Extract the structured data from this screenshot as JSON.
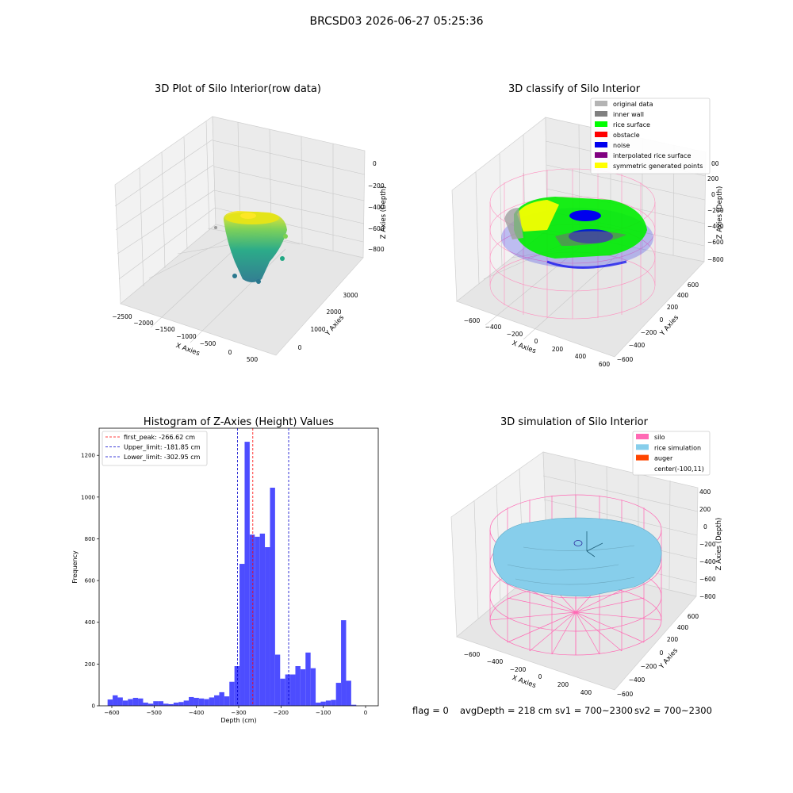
{
  "suptitle": "BRCSD03 2026-06-27 05:25:36",
  "footer": {
    "flag": "flag = 0",
    "avg_depth": "avgDepth = 218 cm",
    "sv1": "sv1 = 700~2300",
    "sv2": "sv2 = 700~2300"
  },
  "chart_data": [
    {
      "type": "scatter",
      "projection": "3d",
      "title": "3D Plot of Silo Interior(row data)",
      "xlabel": "X Axies",
      "ylabel": "Y Axies",
      "zlabel": "Z Axies (Depth)",
      "x_ticks": [
        "−2500",
        "−2000",
        "−1500",
        "−1000",
        "−500",
        "0",
        "500"
      ],
      "y_ticks": [
        "0",
        "1000",
        "2000",
        "3000"
      ],
      "z_ticks": [
        "0",
        "−200",
        "−400",
        "−600",
        "−800"
      ],
      "colormap": "viridis"
    },
    {
      "type": "scatter",
      "projection": "3d",
      "title": "3D classify of Silo Interior",
      "xlabel": "X Axies",
      "ylabel": "Y Axies",
      "zlabel": "Z Axies (Depth)",
      "x_ticks": [
        "−600",
        "−400",
        "−200",
        "0",
        "200",
        "400",
        "600"
      ],
      "y_ticks": [
        "−600",
        "−400",
        "−200",
        "0",
        "200",
        "400",
        "600"
      ],
      "z_ticks": [
        "200",
        "0",
        "−200",
        "−400",
        "−600",
        "−800"
      ],
      "z_ticks_partial": [
        "00"
      ],
      "legend": [
        {
          "label": "original data",
          "color": "#b4b4b4"
        },
        {
          "label": "inner wall",
          "color": "#808080"
        },
        {
          "label": "rice surface",
          "color": "#00ff00"
        },
        {
          "label": "obstacle",
          "color": "#ff0000"
        },
        {
          "label": "noise",
          "color": "#0000ee"
        },
        {
          "label": "interpolated rice surface",
          "color": "#800080"
        },
        {
          "label": "symmetric generated points",
          "color": "#ffff00"
        }
      ]
    },
    {
      "type": "bar",
      "title": "Histogram of Z-Axies (Height) Values",
      "xlabel": "Depth (cm)",
      "ylabel": "Frequency",
      "xlim": [
        -630,
        30
      ],
      "ylim": [
        0,
        1330
      ],
      "x_ticks": [
        -600,
        -500,
        -400,
        -300,
        -200,
        -100,
        0
      ],
      "x_tick_labels": [
        "−600",
        "−500",
        "−400",
        "−300",
        "−200",
        "−100",
        "0"
      ],
      "y_ticks": [
        0,
        200,
        400,
        600,
        800,
        1000,
        1200
      ],
      "y_tick_labels": [
        "0",
        "200",
        "400",
        "600",
        "800",
        "1000",
        "1200"
      ],
      "bar_color": "#4d4dff",
      "bins": [
        {
          "start": -610,
          "end": -598,
          "count": 30
        },
        {
          "start": -598,
          "end": -586,
          "count": 50
        },
        {
          "start": -586,
          "end": -574,
          "count": 40
        },
        {
          "start": -574,
          "end": -562,
          "count": 25
        },
        {
          "start": -562,
          "end": -550,
          "count": 32
        },
        {
          "start": -550,
          "end": -538,
          "count": 38
        },
        {
          "start": -538,
          "end": -526,
          "count": 35
        },
        {
          "start": -526,
          "end": -514,
          "count": 15
        },
        {
          "start": -514,
          "end": -502,
          "count": 10
        },
        {
          "start": -502,
          "end": -490,
          "count": 22
        },
        {
          "start": -490,
          "end": -478,
          "count": 22
        },
        {
          "start": -478,
          "end": -466,
          "count": 10
        },
        {
          "start": -466,
          "end": -454,
          "count": 8
        },
        {
          "start": -454,
          "end": -442,
          "count": 15
        },
        {
          "start": -442,
          "end": -430,
          "count": 18
        },
        {
          "start": -430,
          "end": -418,
          "count": 25
        },
        {
          "start": -418,
          "end": -406,
          "count": 42
        },
        {
          "start": -406,
          "end": -394,
          "count": 38
        },
        {
          "start": -394,
          "end": -382,
          "count": 35
        },
        {
          "start": -382,
          "end": -370,
          "count": 32
        },
        {
          "start": -370,
          "end": -358,
          "count": 40
        },
        {
          "start": -358,
          "end": -346,
          "count": 50
        },
        {
          "start": -346,
          "end": -334,
          "count": 65
        },
        {
          "start": -334,
          "end": -322,
          "count": 45
        },
        {
          "start": -322,
          "end": -310,
          "count": 115
        },
        {
          "start": -310,
          "end": -298,
          "count": 190
        },
        {
          "start": -298,
          "end": -286,
          "count": 680
        },
        {
          "start": -286,
          "end": -274,
          "count": 1265
        },
        {
          "start": -274,
          "end": -262,
          "count": 820
        },
        {
          "start": -262,
          "end": -250,
          "count": 810
        },
        {
          "start": -250,
          "end": -238,
          "count": 825
        },
        {
          "start": -238,
          "end": -226,
          "count": 760
        },
        {
          "start": -226,
          "end": -214,
          "count": 1045
        },
        {
          "start": -214,
          "end": -202,
          "count": 245
        },
        {
          "start": -202,
          "end": -190,
          "count": 130
        },
        {
          "start": -190,
          "end": -178,
          "count": 150
        },
        {
          "start": -178,
          "end": -166,
          "count": 150
        },
        {
          "start": -166,
          "end": -154,
          "count": 190
        },
        {
          "start": -154,
          "end": -142,
          "count": 175
        },
        {
          "start": -142,
          "end": -130,
          "count": 255
        },
        {
          "start": -130,
          "end": -118,
          "count": 180
        },
        {
          "start": -118,
          "end": -106,
          "count": 15
        },
        {
          "start": -106,
          "end": -94,
          "count": 20
        },
        {
          "start": -94,
          "end": -82,
          "count": 25
        },
        {
          "start": -82,
          "end": -70,
          "count": 28
        },
        {
          "start": -70,
          "end": -58,
          "count": 110
        },
        {
          "start": -58,
          "end": -46,
          "count": 410
        },
        {
          "start": -46,
          "end": -34,
          "count": 120
        },
        {
          "start": -34,
          "end": -22,
          "count": 5
        }
      ],
      "reference_lines": [
        {
          "label": "first_peak: -266.62 cm",
          "value": -266.62,
          "color": "#ff0000"
        },
        {
          "label": "Upper_limit: -181.85 cm",
          "value": -181.85,
          "color": "#0000cc"
        },
        {
          "label": "Lower_limit: -302.95 cm",
          "value": -302.95,
          "color": "#0000cc"
        }
      ],
      "legend_position": "upper-left"
    },
    {
      "type": "surface",
      "projection": "3d",
      "title": "3D simulation of Silo Interior",
      "xlabel": "X Axies",
      "ylabel": "Y Axies",
      "zlabel": "Z Axies (Depth)",
      "x_ticks": [
        "−600",
        "−400",
        "−200",
        "0",
        "200",
        "400"
      ],
      "y_ticks": [
        "−600",
        "−400",
        "−200",
        "0",
        "200",
        "400",
        "600"
      ],
      "z_ticks": [
        "400",
        "200",
        "0",
        "−200",
        "−400",
        "−600",
        "−800"
      ],
      "legend": [
        {
          "label": "silo",
          "color": "#ff69b4"
        },
        {
          "label": "rice simulation",
          "color": "#87ceeb"
        },
        {
          "label": "auger",
          "color": "#ff4500"
        },
        {
          "label": "center(-100,11)",
          "color": ""
        }
      ]
    }
  ]
}
